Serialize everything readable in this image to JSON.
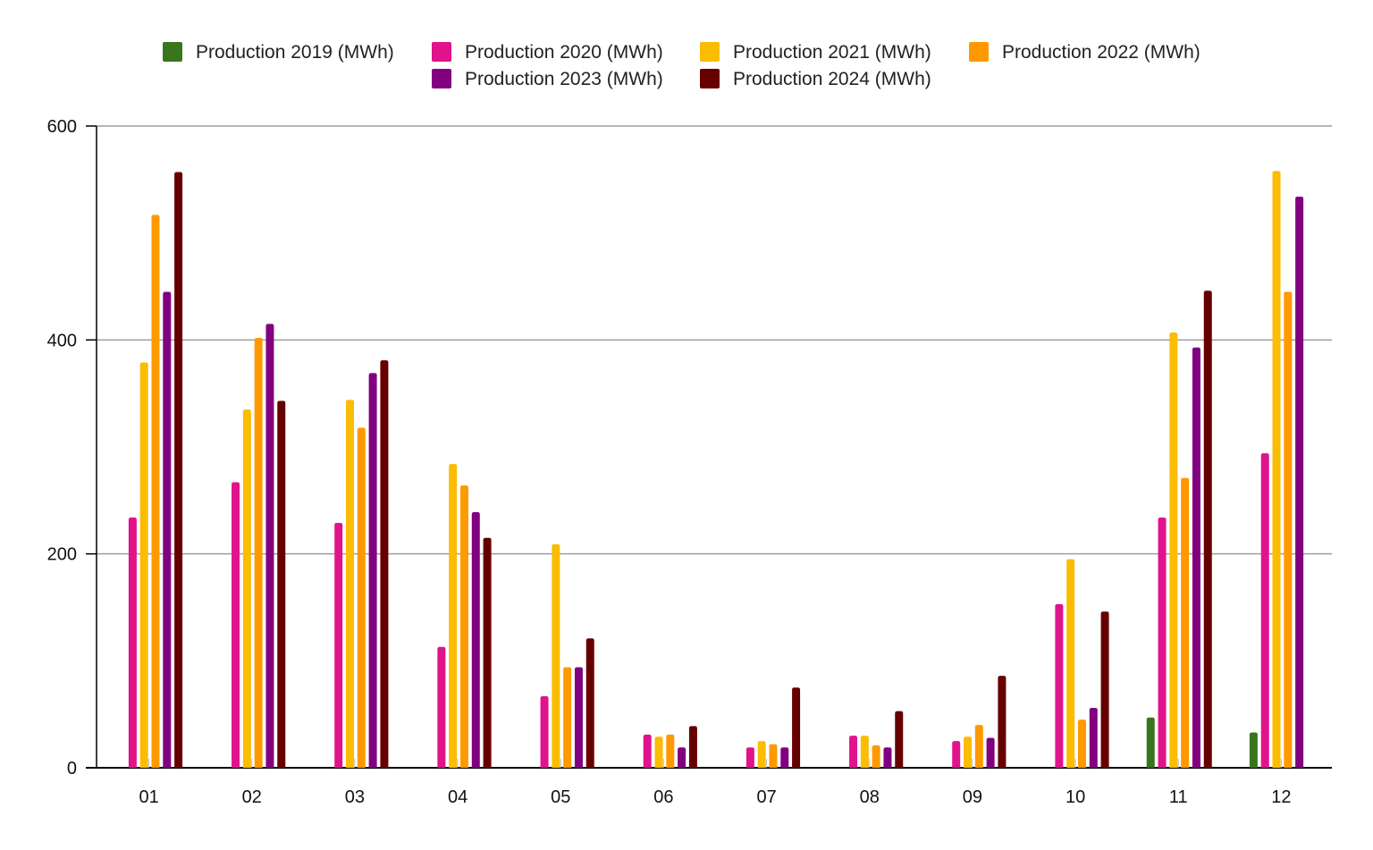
{
  "chart_data": {
    "type": "bar",
    "title": "",
    "xlabel": "",
    "ylabel": "",
    "categories": [
      "01",
      "02",
      "03",
      "04",
      "05",
      "06",
      "07",
      "08",
      "09",
      "10",
      "11",
      "12"
    ],
    "ylim": [
      0,
      600
    ],
    "yticks": [
      0,
      200,
      400,
      600
    ],
    "grid": true,
    "legend_position": "top",
    "series": [
      {
        "name": "Production 2019 (MWh)",
        "color": "#38761d",
        "values": [
          null,
          null,
          null,
          null,
          null,
          null,
          null,
          null,
          null,
          null,
          47,
          33
        ]
      },
      {
        "name": "Production 2020 (MWh)",
        "color": "#e0138c",
        "values": [
          234,
          267,
          229,
          113,
          67,
          31,
          19,
          30,
          25,
          153,
          234,
          294
        ]
      },
      {
        "name": "Production 2021 (MWh)",
        "color": "#fbbc04",
        "values": [
          379,
          335,
          344,
          284,
          209,
          29,
          25,
          30,
          29,
          195,
          407,
          558
        ]
      },
      {
        "name": "Production 2022 (MWh)",
        "color": "#ff9900",
        "values": [
          517,
          402,
          318,
          264,
          94,
          31,
          22,
          21,
          40,
          45,
          271,
          445
        ]
      },
      {
        "name": "Production 2023 (MWh)",
        "color": "#800080",
        "values": [
          445,
          415,
          369,
          239,
          94,
          19,
          19,
          19,
          28,
          56,
          393,
          534
        ]
      },
      {
        "name": "Production 2024 (MWh)",
        "color": "#660000",
        "values": [
          557,
          343,
          381,
          215,
          121,
          39,
          75,
          53,
          86,
          146,
          446,
          null
        ]
      }
    ]
  }
}
